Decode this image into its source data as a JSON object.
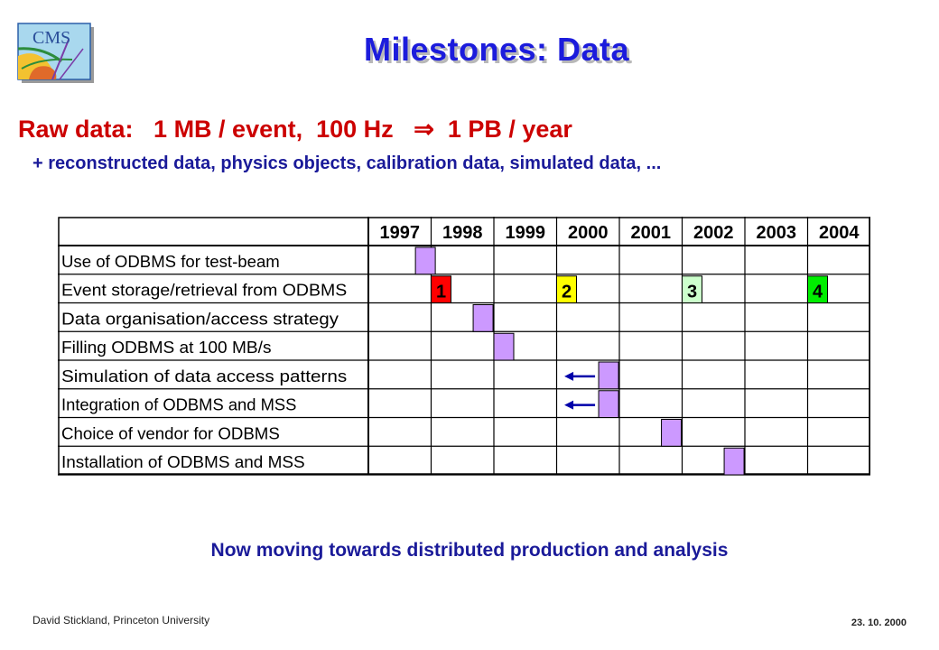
{
  "slide": {
    "title": "Milestones: Data",
    "logo_text": "CMS",
    "raw_data": {
      "label": "Raw data:",
      "event_size": "1 MB / event,",
      "rate": "100 Hz",
      "arrow": "⇒",
      "yearly": "1 PB / year"
    },
    "subtitle": "+ reconstructed data, physics objects, calibration data, simulated data, ...",
    "bottom_text": "Now moving towards distributed production and analysis",
    "footer_left": "David Stickland,  Princeton University",
    "footer_right": "23. 10. 2000"
  },
  "gantt": {
    "years": [
      "1997",
      "1998",
      "1999",
      "2000",
      "2001",
      "2002",
      "2003",
      "2004"
    ],
    "colors": {
      "milestone": "#cc99ff",
      "m1": "#ff0000",
      "m2": "#ffff00",
      "m3": "#ccffcc",
      "m4": "#00ee00",
      "arrow": "#0000aa"
    },
    "rows": [
      {
        "label": "Use of ODBMS for test-beam",
        "marks": [
          {
            "pos": 0.75,
            "text": "",
            "color": "milestone"
          }
        ]
      },
      {
        "label": "Event storage/retrieval from ODBMS",
        "marks": [
          {
            "pos": 1.0,
            "text": "1",
            "color": "m1"
          },
          {
            "pos": 3.0,
            "text": "2",
            "color": "m2"
          },
          {
            "pos": 5.0,
            "text": "3",
            "color": "m3"
          },
          {
            "pos": 7.0,
            "text": "4",
            "color": "m4"
          }
        ]
      },
      {
        "label": "Data organisation/access strategy",
        "marks": [
          {
            "pos": 1.67,
            "text": "",
            "color": "milestone"
          }
        ]
      },
      {
        "label": "Filling ODBMS at 100 MB/s",
        "marks": [
          {
            "pos": 2.0,
            "text": "",
            "color": "milestone"
          }
        ]
      },
      {
        "label": "Simulation of data access patterns",
        "marks": [
          {
            "pos": 3.67,
            "text": "",
            "color": "milestone"
          }
        ],
        "arrow": true
      },
      {
        "label": "Integration of ODBMS and MSS",
        "marks": [
          {
            "pos": 3.67,
            "text": "",
            "color": "milestone"
          }
        ],
        "arrow": true
      },
      {
        "label": "Choice of vendor for ODBMS",
        "marks": [
          {
            "pos": 4.67,
            "text": "",
            "color": "milestone"
          }
        ]
      },
      {
        "label": "Installation of ODBMS and MSS",
        "marks": [
          {
            "pos": 5.67,
            "text": "",
            "color": "milestone"
          }
        ]
      }
    ]
  }
}
